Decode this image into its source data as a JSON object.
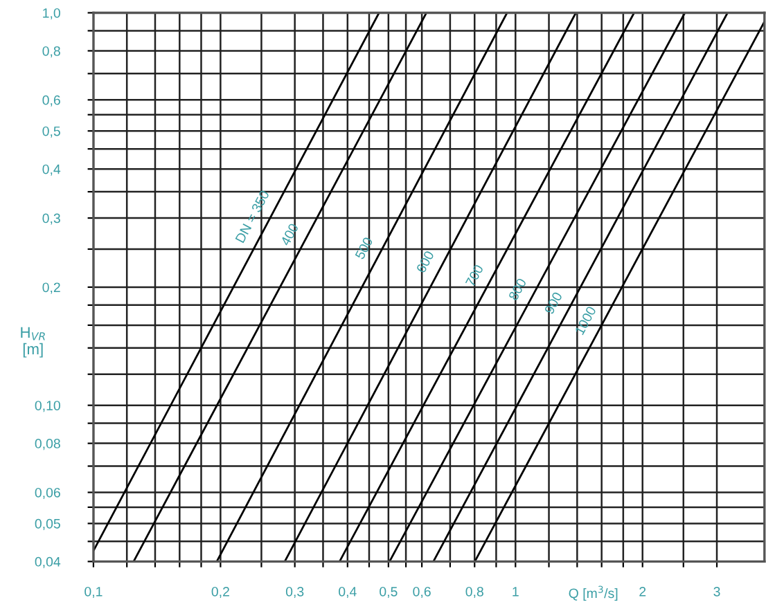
{
  "chart_data": {
    "type": "line",
    "xlabel": "Q [m$^{3}$/s]",
    "ylabel": "H$_{VR}$\n[m]",
    "log": "xy",
    "grid": true,
    "marker": "none",
    "line_style": "solid",
    "xlim": [
      0.1,
      3.89
    ],
    "ylim": [
      0.04,
      1.0
    ],
    "xticks": [
      {
        "value": 0.1,
        "label": "0,1"
      },
      {
        "value": 0.12,
        "label": null
      },
      {
        "value": 0.14,
        "label": null
      },
      {
        "value": 0.16,
        "label": null
      },
      {
        "value": 0.18,
        "label": null
      },
      {
        "value": 0.2,
        "label": "0,2"
      },
      {
        "value": 0.25,
        "label": null
      },
      {
        "value": 0.3,
        "label": "0,3"
      },
      {
        "value": 0.35,
        "label": null
      },
      {
        "value": 0.4,
        "label": "0,4"
      },
      {
        "value": 0.45,
        "label": null
      },
      {
        "value": 0.5,
        "label": "0,5"
      },
      {
        "value": 0.55,
        "label": null
      },
      {
        "value": 0.6,
        "label": "0,6"
      },
      {
        "value": 0.7,
        "label": null
      },
      {
        "value": 0.8,
        "label": "0,8"
      },
      {
        "value": 0.9,
        "label": null
      },
      {
        "value": 1,
        "label": "1"
      },
      {
        "value": 1.2,
        "label": null
      },
      {
        "value": 1.4,
        "label": null
      },
      {
        "value": 1.6,
        "label": null
      },
      {
        "value": 1.8,
        "label": null
      },
      {
        "value": 2,
        "label": "2"
      },
      {
        "value": 2.5,
        "label": null
      },
      {
        "value": 3,
        "label": "3"
      }
    ],
    "yticks": [
      {
        "value": 0.04,
        "label": "0,04"
      },
      {
        "value": 0.045,
        "label": null
      },
      {
        "value": 0.05,
        "label": "0,05"
      },
      {
        "value": 0.055,
        "label": null
      },
      {
        "value": 0.06,
        "label": "0,06"
      },
      {
        "value": 0.07,
        "label": null
      },
      {
        "value": 0.08,
        "label": "0,08"
      },
      {
        "value": 0.09,
        "label": null
      },
      {
        "value": 0.1,
        "label": "0,10"
      },
      {
        "value": 0.12,
        "label": null
      },
      {
        "value": 0.14,
        "label": null
      },
      {
        "value": 0.16,
        "label": null
      },
      {
        "value": 0.18,
        "label": null
      },
      {
        "value": 0.2,
        "label": "0,2"
      },
      {
        "value": 0.25,
        "label": null
      },
      {
        "value": 0.3,
        "label": "0,3"
      },
      {
        "value": 0.35,
        "label": null
      },
      {
        "value": 0.4,
        "label": "0,4"
      },
      {
        "value": 0.45,
        "label": null
      },
      {
        "value": 0.5,
        "label": "0,5"
      },
      {
        "value": 0.55,
        "label": null
      },
      {
        "value": 0.6,
        "label": "0,6"
      },
      {
        "value": 0.7,
        "label": null
      },
      {
        "value": 0.8,
        "label": "0,8"
      },
      {
        "value": 0.9,
        "label": null
      },
      {
        "value": 1.0,
        "label": "1,0"
      }
    ],
    "series": [
      {
        "name": "DN = 350",
        "color": "#000000",
        "x": [
          0.1,
          0.475
        ],
        "values": [
          0.0426,
          1.0
        ]
      },
      {
        "name": "400",
        "color": "#000000",
        "x": [
          0.1245,
          0.615
        ],
        "values": [
          0.04,
          1.0
        ]
      },
      {
        "name": "500",
        "color": "#000000",
        "x": [
          0.196,
          0.955
        ],
        "values": [
          0.04,
          1.0
        ]
      },
      {
        "name": "600",
        "color": "#000000",
        "x": [
          0.284,
          1.39
        ],
        "values": [
          0.04,
          1.0
        ]
      },
      {
        "name": "700",
        "color": "#000000",
        "x": [
          0.383,
          1.91
        ],
        "values": [
          0.04,
          1.0
        ]
      },
      {
        "name": "800",
        "color": "#000000",
        "x": [
          0.503,
          2.52
        ],
        "values": [
          0.04,
          1.0
        ]
      },
      {
        "name": "900",
        "color": "#000000",
        "x": [
          0.639,
          3.18
        ],
        "values": [
          0.04,
          1.0
        ]
      },
      {
        "name": "1000",
        "color": "#000000",
        "x": [
          0.801,
          3.89
        ],
        "values": [
          0.04,
          0.95
        ]
      }
    ]
  }
}
